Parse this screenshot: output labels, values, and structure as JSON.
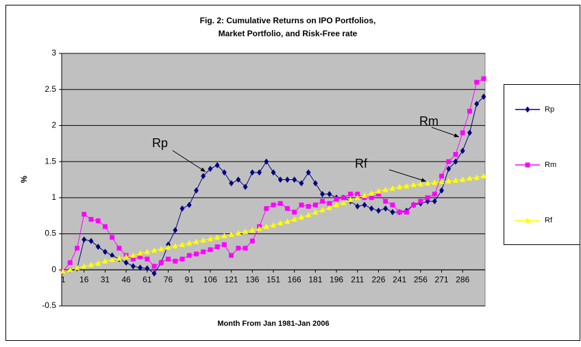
{
  "chart_data": {
    "type": "line",
    "title": "Fig. 2: Cumulative Returns on IPO Portfolios,",
    "subtitle": "Market Portfolio, and Risk-Free rate",
    "x_label": "Month From Jan 1981-Jan 2006",
    "y_label": "%",
    "x": [
      1,
      6,
      11,
      16,
      21,
      26,
      31,
      36,
      41,
      46,
      51,
      56,
      61,
      66,
      71,
      76,
      81,
      86,
      91,
      96,
      101,
      106,
      111,
      116,
      121,
      126,
      131,
      136,
      141,
      146,
      151,
      156,
      161,
      166,
      171,
      176,
      181,
      186,
      191,
      196,
      201,
      206,
      211,
      216,
      221,
      226,
      231,
      236,
      241,
      246,
      251,
      256,
      261,
      266,
      271,
      276,
      281,
      286,
      291,
      296,
      301
    ],
    "xlim": [
      0,
      302
    ],
    "xticks": [
      1,
      16,
      31,
      46,
      61,
      76,
      91,
      106,
      121,
      136,
      151,
      166,
      181,
      196,
      211,
      226,
      241,
      256,
      271,
      286
    ],
    "ylim": [
      -0.5,
      3
    ],
    "yticks": [
      -0.5,
      0,
      0.5,
      1,
      1.5,
      2,
      2.5,
      3
    ],
    "grid": true,
    "series": [
      {
        "name": "Rp",
        "color": "#000080",
        "marker": "diamond",
        "values": [
          -0.02,
          0,
          0.02,
          0.42,
          0.4,
          0.32,
          0.25,
          0.2,
          0.15,
          0.1,
          0.05,
          0.03,
          0.02,
          -0.05,
          0.1,
          0.35,
          0.55,
          0.85,
          0.9,
          1.1,
          1.3,
          1.4,
          1.45,
          1.35,
          1.2,
          1.25,
          1.15,
          1.35,
          1.35,
          1.5,
          1.35,
          1.25,
          1.25,
          1.25,
          1.2,
          1.35,
          1.2,
          1.05,
          1.05,
          1.0,
          1.0,
          0.95,
          0.88,
          0.9,
          0.85,
          0.82,
          0.85,
          0.8,
          0.8,
          0.82,
          0.9,
          0.92,
          0.95,
          0.95,
          1.1,
          1.4,
          1.5,
          1.65,
          1.9,
          2.3,
          2.4
        ]
      },
      {
        "name": "Rm",
        "color": "#ff00ff",
        "marker": "square",
        "values": [
          -0.02,
          0.1,
          0.3,
          0.77,
          0.7,
          0.68,
          0.6,
          0.45,
          0.3,
          0.2,
          0.15,
          0.18,
          0.15,
          0.05,
          0.1,
          0.15,
          0.12,
          0.15,
          0.2,
          0.22,
          0.25,
          0.28,
          0.32,
          0.35,
          0.2,
          0.3,
          0.3,
          0.4,
          0.6,
          0.85,
          0.9,
          0.92,
          0.85,
          0.8,
          0.9,
          0.88,
          0.9,
          0.95,
          0.92,
          0.98,
          1.0,
          1.05,
          1.05,
          1.0,
          1.0,
          1.05,
          0.95,
          0.9,
          0.8,
          0.8,
          0.9,
          0.95,
          1.0,
          1.05,
          1.3,
          1.5,
          1.6,
          1.9,
          2.2,
          2.6,
          2.65
        ]
      },
      {
        "name": "Rf",
        "color": "#ffff00",
        "marker": "triangle",
        "values": [
          -0.02,
          0.0,
          0.03,
          0.05,
          0.07,
          0.09,
          0.12,
          0.14,
          0.16,
          0.18,
          0.2,
          0.23,
          0.25,
          0.27,
          0.29,
          0.31,
          0.33,
          0.35,
          0.37,
          0.39,
          0.41,
          0.43,
          0.45,
          0.47,
          0.49,
          0.51,
          0.53,
          0.55,
          0.57,
          0.6,
          0.62,
          0.65,
          0.67,
          0.7,
          0.73,
          0.76,
          0.8,
          0.83,
          0.86,
          0.9,
          0.93,
          0.97,
          1.0,
          1.03,
          1.06,
          1.09,
          1.11,
          1.13,
          1.15,
          1.16,
          1.18,
          1.19,
          1.2,
          1.21,
          1.22,
          1.23,
          1.24,
          1.25,
          1.27,
          1.28,
          1.3
        ]
      }
    ],
    "annotations": [
      {
        "text": "Rp"
      },
      {
        "text": "Rf"
      },
      {
        "text": "Rm"
      }
    ]
  }
}
